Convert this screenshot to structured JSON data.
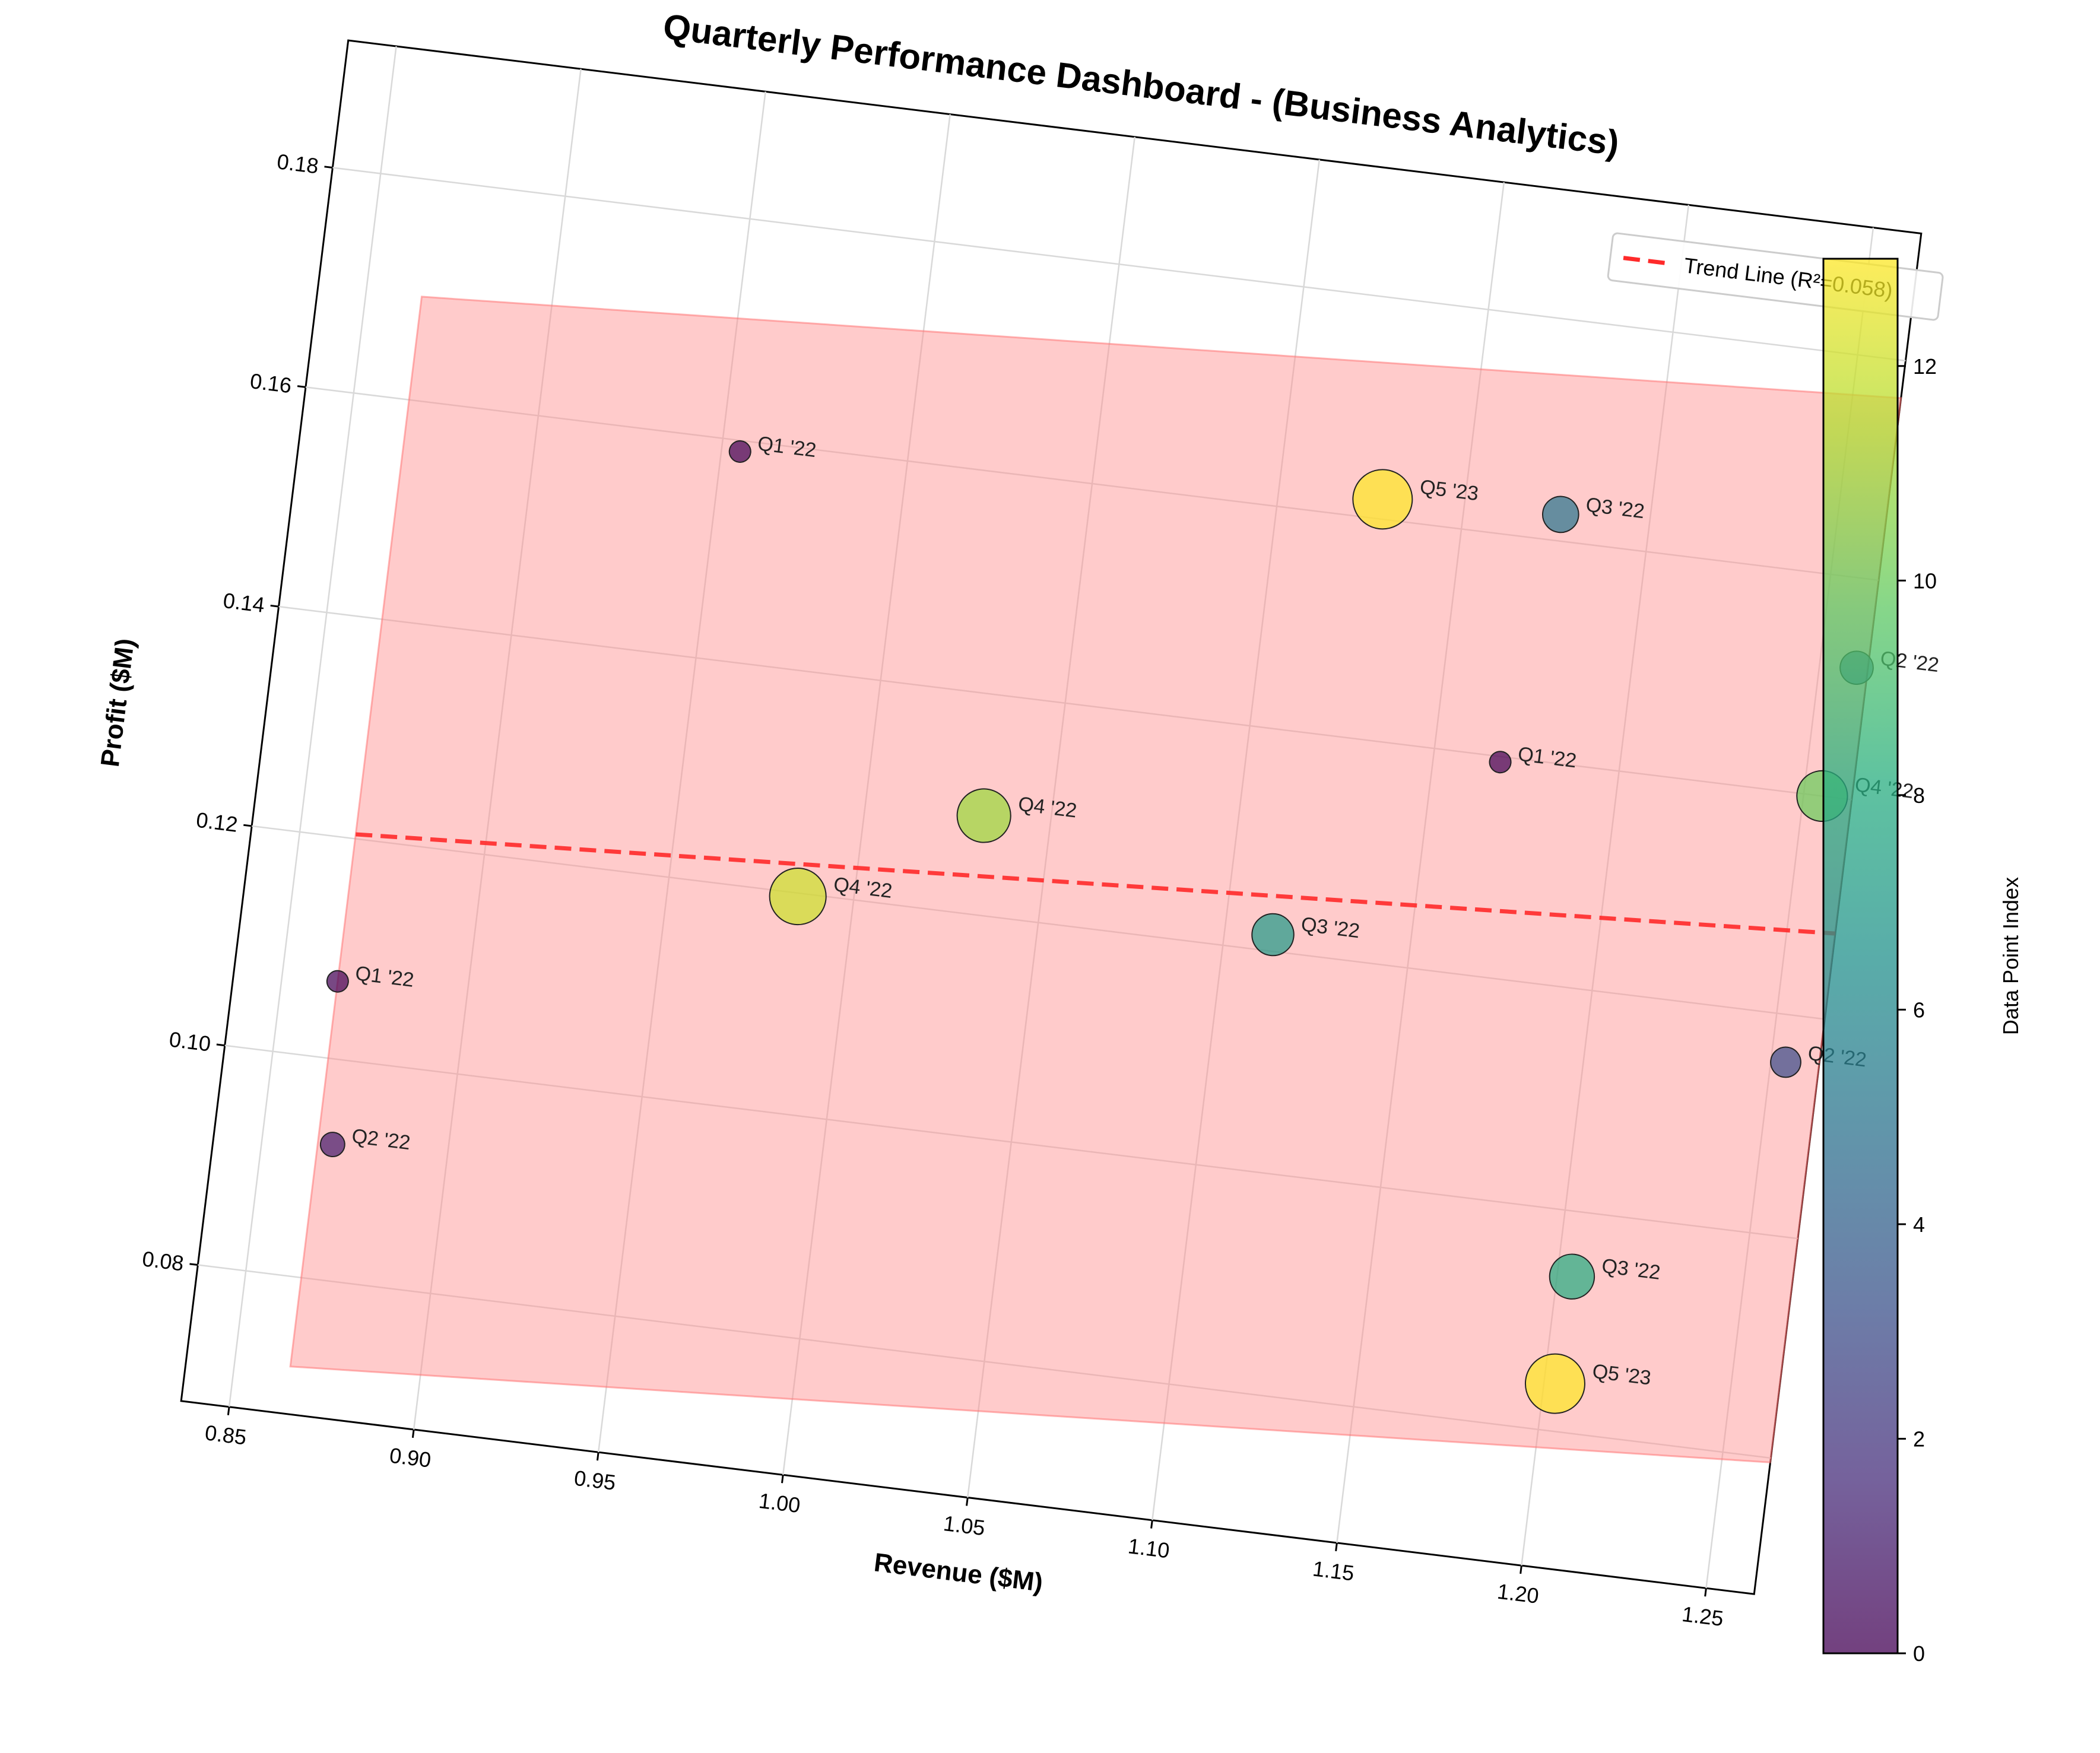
{
  "chart_data": {
    "type": "scatter",
    "title": "Quarterly Performance Dashboard - (Business Analytics)",
    "xlabel": "Revenue ($M)",
    "ylabel": "Profit ($M)",
    "xlim": [
      0.837,
      1.263
    ],
    "ylim": [
      0.0676,
      0.1916
    ],
    "x_ticks": [
      0.85,
      0.9,
      0.95,
      1.0,
      1.05,
      1.1,
      1.15,
      1.2,
      1.25
    ],
    "x_tick_labels": [
      "0.85",
      "0.90",
      "0.95",
      "1.00",
      "1.05",
      "1.10",
      "1.15",
      "1.20",
      "1.25"
    ],
    "y_ticks": [
      0.08,
      0.1,
      0.12,
      0.14,
      0.16,
      0.18
    ],
    "y_tick_labels": [
      "0.08",
      "0.10",
      "0.12",
      "0.14",
      "0.16",
      "0.18"
    ],
    "grid": true,
    "plot_rotation_deg": 7,
    "legend": {
      "placement": "top-right",
      "entries": [
        "Trend Line (R²=0.058)"
      ]
    },
    "trend_line": {
      "x": [
        0.865,
        1.263
      ],
      "y": [
        0.1204,
        0.1278
      ],
      "color": "#ff2a2a",
      "style": "dashed"
    },
    "confidence_band": {
      "polygon": [
        [
          0.865,
          0.1694
        ],
        [
          1.263,
          0.1766
        ],
        [
          1.263,
          0.0796
        ],
        [
          0.865,
          0.0719
        ]
      ],
      "color": "#ff8c8c"
    },
    "colorbar": {
      "label": "Data Point Index",
      "min": 0,
      "max": 13,
      "ticks": [
        0,
        2,
        4,
        6,
        8,
        10,
        12
      ],
      "tick_labels": [
        "0",
        "2",
        "4",
        "6",
        "8",
        "10",
        "12"
      ],
      "colormap": [
        "#440154",
        "#472d7b",
        "#3b528b",
        "#2c728e",
        "#21918c",
        "#28ae80",
        "#5ec962",
        "#addc30",
        "#fde725"
      ]
    },
    "points": [
      {
        "x": 0.865,
        "y": 0.107,
        "label": "Q1 '22",
        "index": 0
      },
      {
        "x": 0.869,
        "y": 0.0923,
        "label": "Q2 '22",
        "index": 1
      },
      {
        "x": 0.955,
        "y": 0.159,
        "label": "Q1 '22",
        "index": 0
      },
      {
        "x": 0.985,
        "y": 0.1197,
        "label": "Q4 '22",
        "index": 12
      },
      {
        "x": 1.032,
        "y": 0.129,
        "label": "Q4 '22",
        "index": 11
      },
      {
        "x": 1.113,
        "y": 0.1215,
        "label": "Q3 '22",
        "index": 7
      },
      {
        "x": 1.128,
        "y": 0.1618,
        "label": "Q5 '23",
        "index": 13
      },
      {
        "x": 1.168,
        "y": 0.1395,
        "label": "Q1 '22",
        "index": 0
      },
      {
        "x": 1.176,
        "y": 0.1624,
        "label": "Q3 '22",
        "index": 5
      },
      {
        "x": 1.204,
        "y": 0.0941,
        "label": "Q3 '22",
        "index": 8
      },
      {
        "x": 1.203,
        "y": 0.0843,
        "label": "Q5 '23",
        "index": 13
      },
      {
        "x": 1.254,
        "y": 0.1157,
        "label": "Q2 '22",
        "index": 3
      },
      {
        "x": 1.255,
        "y": 0.14,
        "label": "Q4 '22",
        "index": 10
      },
      {
        "x": 1.26,
        "y": 0.1519,
        "label": "Q2 '22",
        "index": 4
      }
    ]
  }
}
